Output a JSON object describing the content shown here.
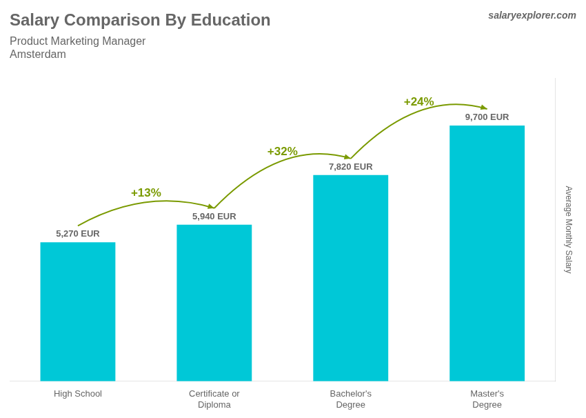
{
  "chart_data": {
    "type": "bar",
    "title": "Salary Comparison By Education",
    "subtitle": [
      "Product Marketing Manager",
      "Amsterdam"
    ],
    "ylabel": "Average Monthly Salary",
    "categories": [
      "High School",
      "Certificate or\nDiploma",
      "Bachelor's\nDegree",
      "Master's\nDegree"
    ],
    "values": [
      5270,
      5940,
      7820,
      9700
    ],
    "value_labels": [
      "5,270 EUR",
      "5,940 EUR",
      "7,820 EUR",
      "9,700 EUR"
    ],
    "data_labels": true,
    "color": "#00c8d7",
    "ylim": [
      0,
      11500
    ],
    "grid": false,
    "legend": false,
    "tick_labels": "x",
    "annotations": [
      {
        "text": "+13%",
        "from": "High School",
        "to": "Certificate or\nDiploma"
      },
      {
        "text": "+32%",
        "from": "Certificate or\nDiploma",
        "to": "Bachelor's\nDegree"
      },
      {
        "text": "+24%",
        "from": "Bachelor's\nDegree",
        "to": "Master's\nDegree"
      },
      {
        "text": "salaryexplorer.com"
      }
    ]
  }
}
